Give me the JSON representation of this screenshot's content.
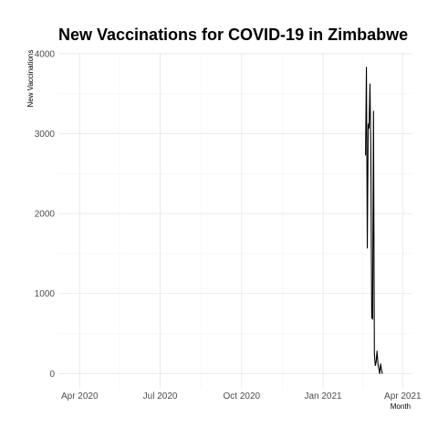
{
  "chart_data": {
    "type": "line",
    "title": "New Vaccinations for COVID-19 in Zimbabwe",
    "xlabel": "Month",
    "ylabel": "New Vaccinations",
    "x_axis_type": "date",
    "xlim": [
      "2020-03-08",
      "2021-04-12"
    ],
    "ylim": [
      -190,
      4010
    ],
    "x_ticks": [
      {
        "date": "2020-04-01",
        "label": "Apr 2020"
      },
      {
        "date": "2020-07-01",
        "label": "Jul 2020"
      },
      {
        "date": "2020-10-01",
        "label": "Oct 2020"
      },
      {
        "date": "2021-01-01",
        "label": "Jan 2021"
      },
      {
        "date": "2021-04-01",
        "label": "Apr 2021"
      }
    ],
    "y_ticks": [
      0,
      1000,
      2000,
      3000,
      4000
    ],
    "grid": true,
    "line_color": "#000000",
    "series": [
      {
        "x": [
          "2021-02-18",
          "2021-02-19",
          "2021-02-20",
          "2021-02-21",
          "2021-02-22",
          "2021-02-23",
          "2021-02-24",
          "2021-02-25",
          "2021-02-26",
          "2021-02-27",
          "2021-02-28",
          "2021-03-01",
          "2021-03-02",
          "2021-03-03",
          "2021-03-04",
          "2021-03-05",
          "2021-03-06",
          "2021-03-07",
          "2021-03-08",
          "2021-03-09"
        ],
        "y": [
          2730,
          3830,
          1570,
          3120,
          3070,
          3620,
          2750,
          700,
          680,
          3280,
          240,
          100,
          150,
          280,
          120,
          60,
          0,
          120,
          50,
          0
        ]
      }
    ]
  }
}
